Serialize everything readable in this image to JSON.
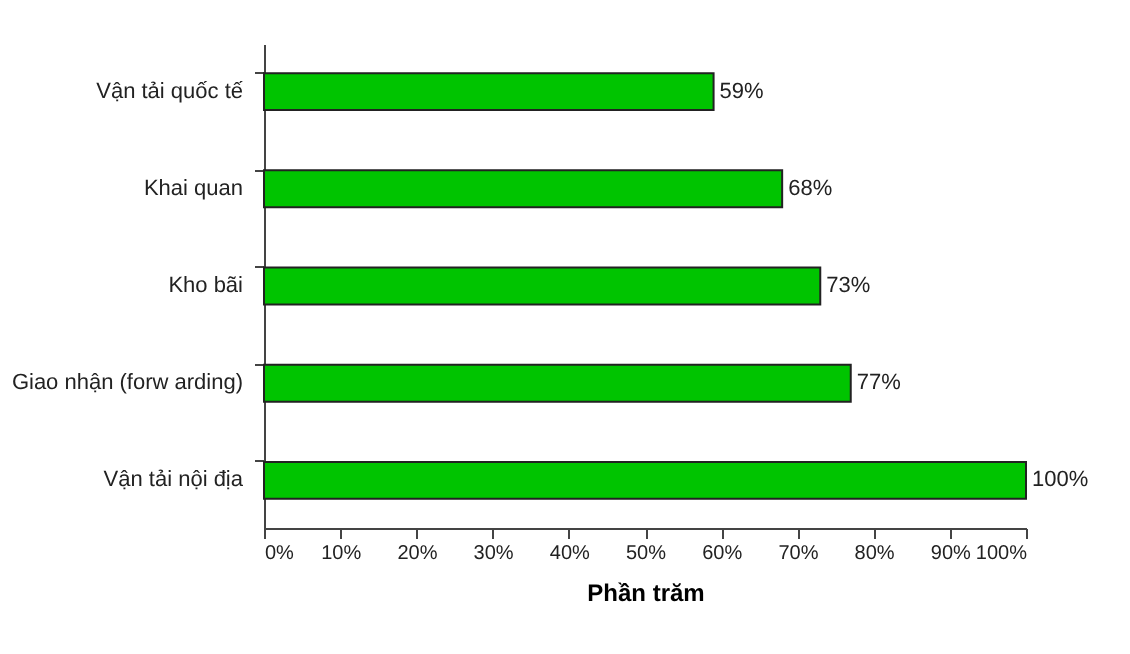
{
  "chart_data": {
    "type": "bar",
    "orientation": "horizontal",
    "xlabel": "Phần trăm",
    "categories": [
      "Vận tải quốc tế",
      "Khai quan",
      "Kho bãi",
      "Giao nhận (forw arding)",
      "Vận tải nội địa"
    ],
    "values": [
      59,
      68,
      73,
      77,
      100
    ],
    "value_labels": [
      "59%",
      "68%",
      "73%",
      "77%",
      "100%"
    ],
    "color": "#00c400",
    "xlim": [
      0,
      100
    ],
    "xticks": [
      {
        "value": 0,
        "label": "0%"
      },
      {
        "value": 10,
        "label": "10%"
      },
      {
        "value": 20,
        "label": "20%"
      },
      {
        "value": 30,
        "label": "30%"
      },
      {
        "value": 40,
        "label": "40%"
      },
      {
        "value": 50,
        "label": "50%"
      },
      {
        "value": 60,
        "label": "60%"
      },
      {
        "value": 70,
        "label": "70%"
      },
      {
        "value": 80,
        "label": "80%"
      },
      {
        "value": 90,
        "label": "90%"
      },
      {
        "value": 100,
        "label": "100%"
      }
    ],
    "grid": false
  }
}
